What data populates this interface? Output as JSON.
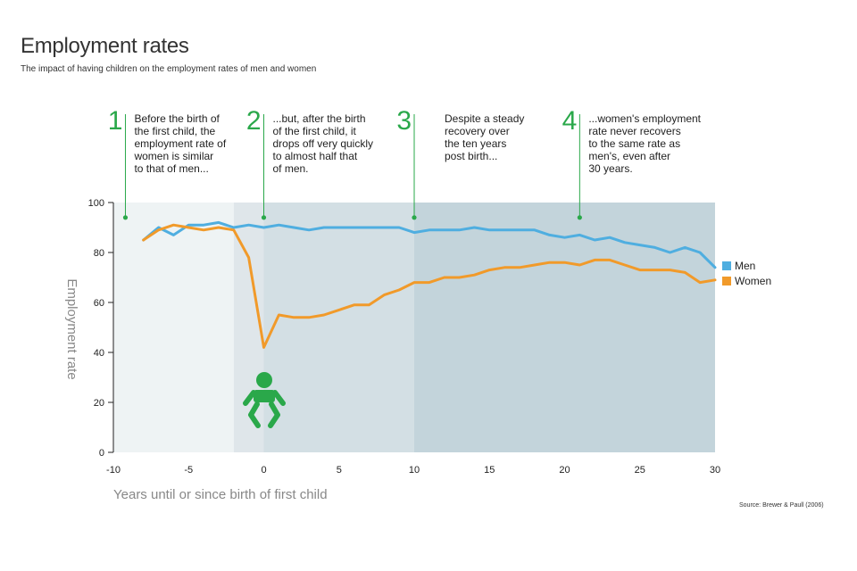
{
  "header": {
    "title": "Employment rates",
    "subtitle": "The impact of having children on the employment rates of men and women"
  },
  "source": "Source: Brewer & Paull (2006)",
  "colors": {
    "men": "#4faee0",
    "women": "#f19a2a",
    "annotation": "#2aa84a",
    "band1": "#eef3f4",
    "band2": "#dfe6ea",
    "band3": "#d3dfe4",
    "band4": "#c3d4db"
  },
  "annotations": [
    {
      "number": "1",
      "lines": [
        "Before the birth of",
        "the first child, the",
        "employment rate of",
        "women is similar",
        "to that of men..."
      ]
    },
    {
      "number": "2",
      "lines": [
        "...but, after the birth",
        "of the first child, it",
        "drops off very quickly",
        "to almost half that",
        "of men."
      ]
    },
    {
      "number": "3",
      "lines": [
        "Despite a steady",
        "recovery over",
        "the ten years",
        "post birth..."
      ]
    },
    {
      "number": "4",
      "lines": [
        "...women's employment",
        "rate never recovers",
        "to the same rate as",
        "men's, even after",
        "30 years."
      ]
    }
  ],
  "baby_icon": "baby-icon",
  "chart_data": {
    "type": "line",
    "title": "Employment rates",
    "subtitle": "The impact of having children on the employment rates of men and women",
    "xlabel": "Years until or since birth of first child",
    "ylabel": "Employment rate",
    "xlim": [
      -10,
      30
    ],
    "ylim": [
      0,
      100
    ],
    "x_ticks": [
      "-10",
      "-5",
      "0",
      "5",
      "10",
      "15",
      "20",
      "25",
      "30"
    ],
    "y_ticks": [
      "0",
      "20",
      "40",
      "60",
      "80",
      "100"
    ],
    "legend_position": "right",
    "annotation_x": [
      -9.2,
      0,
      10,
      21
    ],
    "annotation_y": 94,
    "periods": [
      {
        "from": -10,
        "to": -2
      },
      {
        "from": -2,
        "to": 0
      },
      {
        "from": 0,
        "to": 10
      },
      {
        "from": 10,
        "to": 30
      }
    ],
    "series": [
      {
        "name": "Men",
        "x": [
          -8,
          -7,
          -6,
          -5,
          -4,
          -3,
          -2,
          -1,
          0,
          1,
          2,
          3,
          4,
          5,
          6,
          7,
          8,
          9,
          10,
          11,
          12,
          13,
          14,
          15,
          16,
          17,
          18,
          19,
          20,
          21,
          22,
          23,
          24,
          25,
          26,
          27,
          28,
          29,
          30
        ],
        "y": [
          85,
          90,
          87,
          91,
          91,
          92,
          90,
          91,
          90,
          91,
          90,
          89,
          90,
          90,
          90,
          90,
          90,
          90,
          88,
          89,
          89,
          89,
          90,
          89,
          89,
          89,
          89,
          87,
          86,
          87,
          85,
          86,
          84,
          83,
          82,
          80,
          82,
          80,
          74
        ]
      },
      {
        "name": "Women",
        "x": [
          -8,
          -7,
          -6,
          -5,
          -4,
          -3,
          -2,
          -1,
          0,
          1,
          2,
          3,
          4,
          5,
          6,
          7,
          8,
          9,
          10,
          11,
          12,
          13,
          14,
          15,
          16,
          17,
          18,
          19,
          20,
          21,
          22,
          23,
          24,
          25,
          26,
          27,
          28,
          29,
          30
        ],
        "y": [
          85,
          89,
          91,
          90,
          89,
          90,
          89,
          78,
          42,
          55,
          54,
          54,
          55,
          57,
          59,
          59,
          63,
          65,
          68,
          68,
          70,
          70,
          71,
          73,
          74,
          74,
          75,
          76,
          76,
          75,
          77,
          77,
          75,
          73,
          73,
          73,
          72,
          68,
          69
        ]
      }
    ]
  }
}
